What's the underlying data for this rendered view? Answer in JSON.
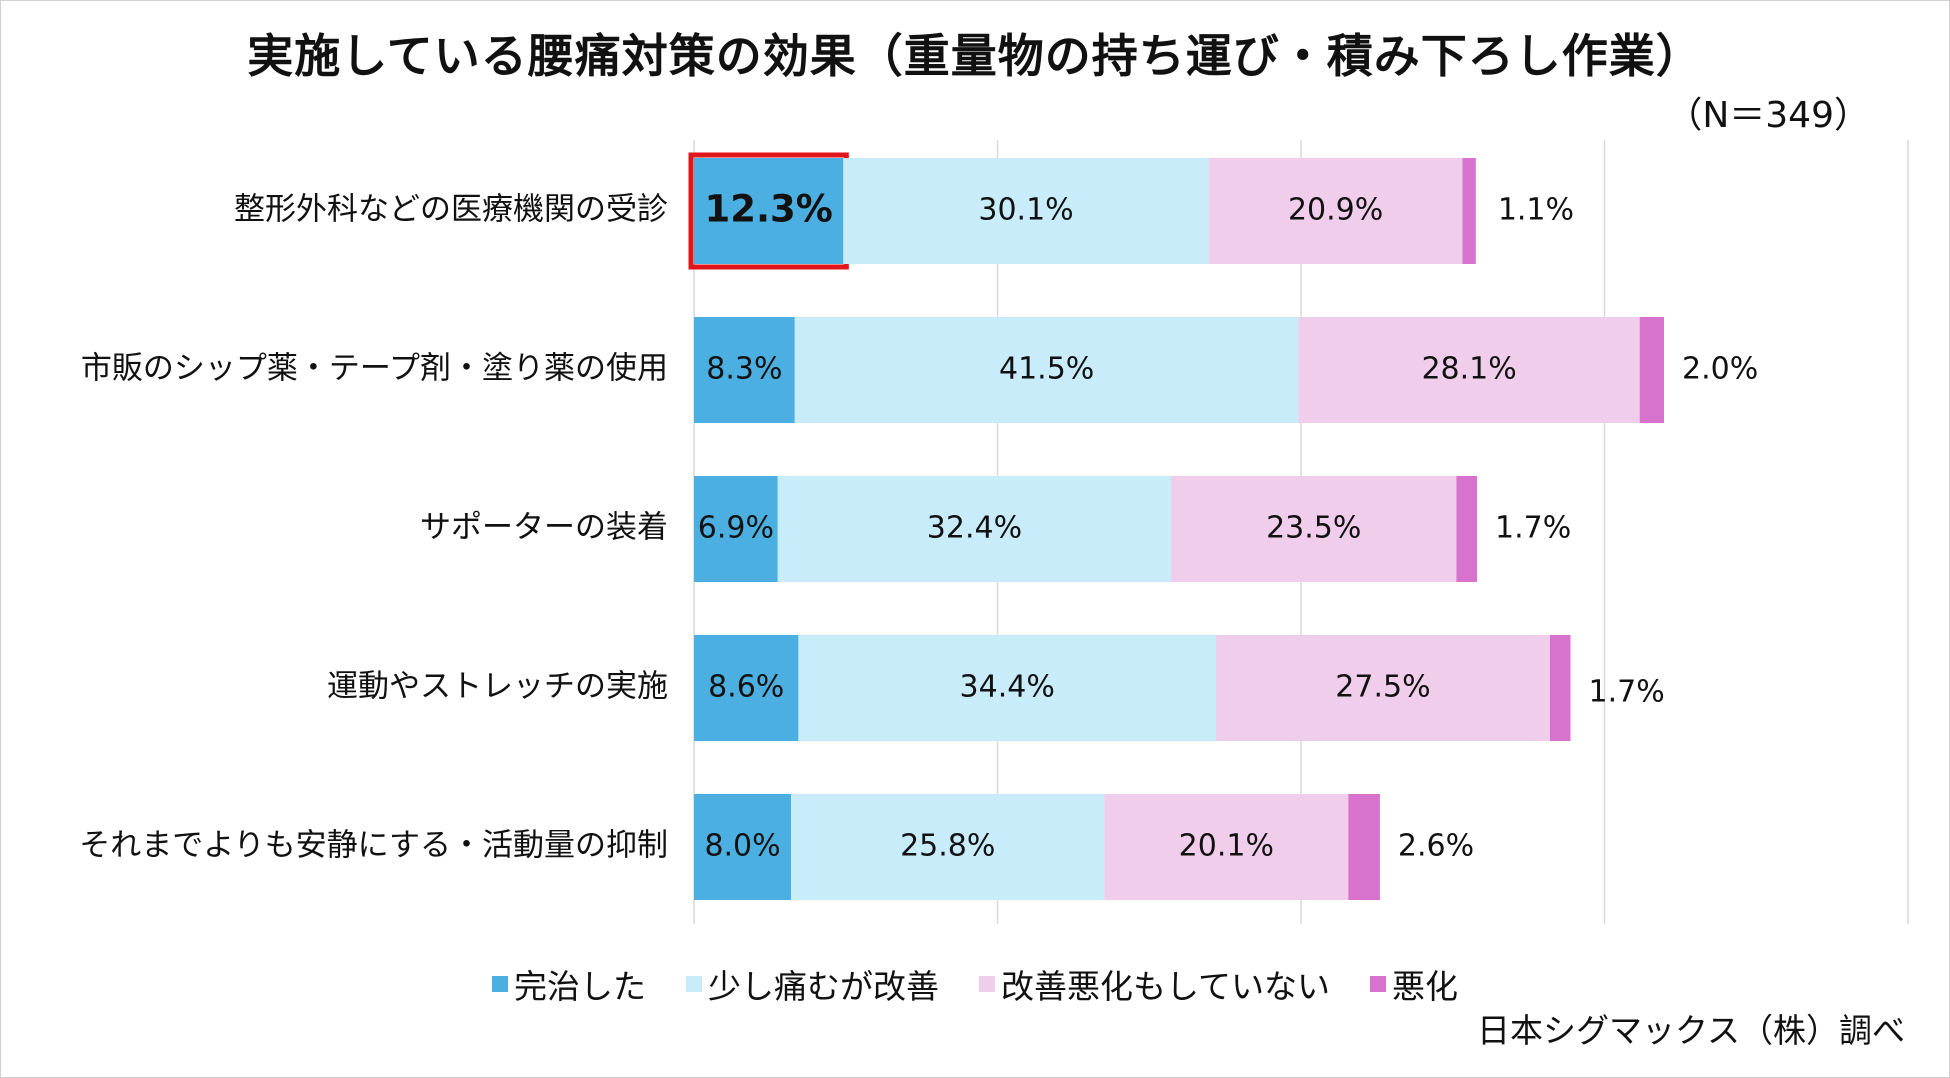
{
  "chart_data": {
    "type": "bar",
    "orientation": "horizontal",
    "stacked": true,
    "title": "実施している腰痛対策の効果（重量物の持ち運び・積み下ろし作業）",
    "sample_label": "（N＝349）",
    "categories": [
      "整形外科などの医療機関の受診",
      "市販のシップ薬・テープ剤・塗り薬の使用",
      "サポーターの装着",
      "運動やストレッチの実施",
      "それまでよりも安静にする・活動量の抑制"
    ],
    "series": [
      {
        "name": "完治した",
        "color": "#4bb0e1",
        "values": [
          12.3,
          8.3,
          6.9,
          8.6,
          8.0
        ],
        "labels": [
          "12.3%",
          "8.3%",
          "6.9%",
          "8.6%",
          "8.0%"
        ]
      },
      {
        "name": "少し痛むが改善",
        "color": "#c9ecfa",
        "values": [
          30.1,
          41.5,
          32.4,
          34.4,
          25.8
        ],
        "labels": [
          "30.1%",
          "41.5%",
          "32.4%",
          "34.4%",
          "25.8%"
        ]
      },
      {
        "name": "改善悪化もしていない",
        "color": "#f1cdec",
        "values": [
          20.9,
          28.1,
          23.5,
          27.5,
          20.1
        ],
        "labels": [
          "20.9%",
          "28.1%",
          "23.5%",
          "27.5%",
          "20.1%"
        ]
      },
      {
        "name": "悪化",
        "color": "#d772cd",
        "values": [
          1.1,
          2.0,
          1.7,
          1.7,
          2.6
        ],
        "labels": [
          "1.1%",
          "2.0%",
          "1.7%",
          "1.7%",
          "2.6%"
        ]
      }
    ],
    "xlim": [
      0,
      100
    ],
    "grid": true,
    "highlight": {
      "category_index": 0,
      "series_index": 0,
      "color": "#e0161b"
    },
    "legend_position": "bottom",
    "source": "日本シグマックス（株）調べ"
  }
}
